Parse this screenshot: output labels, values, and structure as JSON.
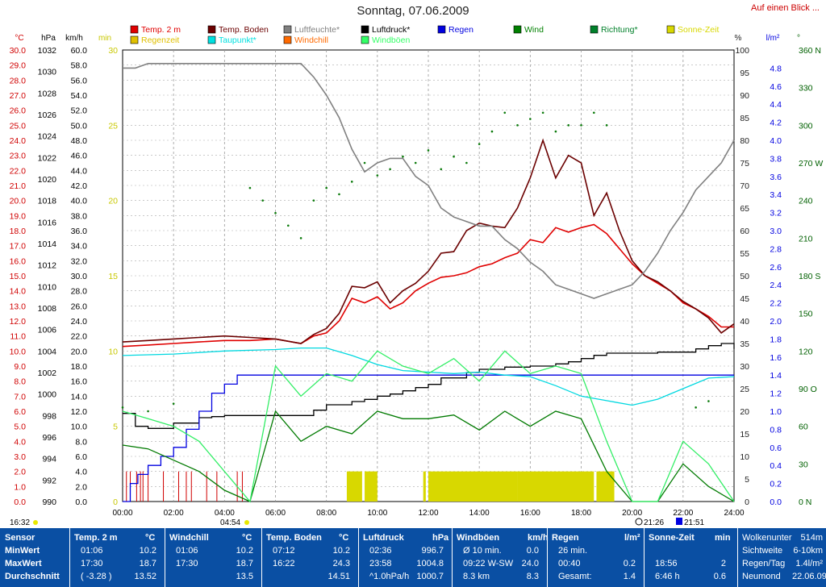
{
  "page": {
    "title": "Sonntag, 07.06.2009",
    "link": "Auf einen Blick ..."
  },
  "chart_data": {
    "type": "line",
    "x_range_hours": [
      0,
      24
    ],
    "x_ticks": [
      "00:00",
      "02:00",
      "04:00",
      "06:00",
      "08:00",
      "10:00",
      "12:00",
      "14:00",
      "16:00",
      "18:00",
      "20:00",
      "22:00",
      "24:00"
    ],
    "grid": true,
    "legend_position": "top",
    "legend": [
      {
        "name": "Temp. 2 m",
        "color": "#e00000"
      },
      {
        "name": "Temp. Boden",
        "color": "#6b0000"
      },
      {
        "name": "Luftfeuchte*",
        "color": "#808080"
      },
      {
        "name": "Luftdruck*",
        "color": "#000000"
      },
      {
        "name": "Regen",
        "color": "#0000e0"
      },
      {
        "name": "Wind",
        "color": "#008000"
      },
      {
        "name": "Richtung*",
        "color": "#00802a"
      },
      {
        "name": "Sonne-Zeit",
        "color": "#d8d800"
      },
      {
        "name": "Regenzeit",
        "color": "#e0c000"
      },
      {
        "name": "Taupunkt*",
        "color": "#00e0e0"
      },
      {
        "name": "Windchill",
        "color": "#ff6a00"
      },
      {
        "name": "Windböen",
        "color": "#33ff66"
      }
    ],
    "axes": {
      "temp": {
        "unit": "°C",
        "range": [
          0,
          30
        ],
        "ticks": [
          "30.0",
          "29.0",
          "28.0",
          "27.0",
          "26.0",
          "25.0",
          "24.0",
          "23.0",
          "22.0",
          "21.0",
          "20.0",
          "19.0",
          "18.0",
          "17.0",
          "16.0",
          "15.0",
          "14.0",
          "13.0",
          "12.0",
          "11.0",
          "10.0",
          "9.0",
          "8.0",
          "7.0",
          "6.0",
          "5.0",
          "4.0",
          "3.0",
          "2.0",
          "1.0",
          "0.0"
        ]
      },
      "pressure": {
        "unit": "hPa",
        "range": [
          990,
          1032
        ],
        "ticks": [
          "1032",
          "1030",
          "1028",
          "1026",
          "1024",
          "1022",
          "1020",
          "1018",
          "1016",
          "1014",
          "1012",
          "1010",
          "1008",
          "1006",
          "1004",
          "1002",
          "1000",
          "998",
          "996",
          "994",
          "992",
          "990"
        ]
      },
      "wind": {
        "unit": "km/h",
        "range": [
          0,
          60
        ],
        "ticks": [
          "60.0",
          "58.0",
          "56.0",
          "54.0",
          "52.0",
          "50.0",
          "48.0",
          "46.0",
          "44.0",
          "42.0",
          "40.0",
          "38.0",
          "36.0",
          "34.0",
          "32.0",
          "30.0",
          "28.0",
          "26.0",
          "24.0",
          "22.0",
          "20.0",
          "18.0",
          "16.0",
          "14.0",
          "12.0",
          "10.0",
          "8.0",
          "6.0",
          "4.0",
          "2.0",
          "0.0"
        ]
      },
      "minutes": {
        "unit": "min",
        "range": [
          0,
          30
        ],
        "ticks": [
          "30",
          "25",
          "20",
          "15",
          "10",
          "5",
          "0"
        ]
      },
      "humidity": {
        "unit": "%",
        "range": [
          0,
          100
        ],
        "ticks": [
          "100",
          "95",
          "90",
          "85",
          "80",
          "75",
          "70",
          "65",
          "60",
          "55",
          "50",
          "45",
          "40",
          "35",
          "30",
          "25",
          "20",
          "15",
          "10",
          "5",
          "0"
        ]
      },
      "rain": {
        "unit": "l/m²",
        "range": [
          0,
          5
        ],
        "ticks": [
          "4.8",
          "4.6",
          "4.4",
          "4.2",
          "4.0",
          "3.8",
          "3.6",
          "3.4",
          "3.2",
          "3.0",
          "2.8",
          "2.6",
          "2.4",
          "2.2",
          "2.0",
          "1.8",
          "1.6",
          "1.4",
          "1.2",
          "1.0",
          "0.8",
          "0.6",
          "0.4",
          "0.2",
          "0.0"
        ]
      },
      "direction": {
        "unit": "°",
        "range": [
          0,
          360
        ],
        "ticks": [
          "360 N",
          "330",
          "300",
          "270 W",
          "240",
          "210",
          "180 S",
          "150",
          "120",
          "90 O",
          "60",
          "30",
          "0 N"
        ]
      }
    },
    "series": [
      {
        "name": "Temp. 2 m",
        "axis": "temp",
        "x": [
          0,
          1,
          2,
          3,
          4,
          5,
          6,
          7,
          7.5,
          8,
          8.5,
          9,
          9.5,
          10,
          10.5,
          11,
          11.5,
          12,
          12.5,
          13,
          13.5,
          14,
          14.5,
          15,
          15.5,
          16,
          16.5,
          17,
          17.5,
          18,
          18.5,
          19,
          19.5,
          20,
          20.5,
          21,
          21.5,
          22,
          22.5,
          23,
          23.5,
          24
        ],
        "y": [
          10.3,
          10.4,
          10.5,
          10.6,
          10.7,
          10.7,
          10.8,
          10.5,
          11,
          11.2,
          12,
          13.5,
          13.2,
          13.6,
          12.8,
          13.2,
          14,
          14.5,
          14.9,
          15,
          15.2,
          15.6,
          15.8,
          16.2,
          16.5,
          17.4,
          17.2,
          18.2,
          17.9,
          18.2,
          18.4,
          17.8,
          16.8,
          15.8,
          15,
          14.5,
          14,
          13.2,
          12.8,
          12.3,
          11.6,
          11.6
        ]
      },
      {
        "name": "Temp. Boden",
        "axis": "temp",
        "x": [
          0,
          1,
          2,
          3,
          4,
          5,
          6,
          7,
          7.5,
          8,
          8.5,
          9,
          9.5,
          10,
          10.5,
          11,
          11.5,
          12,
          12.5,
          13,
          13.5,
          14,
          14.5,
          15,
          15.5,
          16,
          16.5,
          17,
          17.5,
          18,
          18.5,
          19,
          19.5,
          20,
          20.5,
          21,
          21.5,
          22,
          22.5,
          23,
          23.5,
          24
        ],
        "y": [
          10.6,
          10.7,
          10.8,
          10.9,
          11,
          10.9,
          10.8,
          10.5,
          11.1,
          11.5,
          12.5,
          14.3,
          14.2,
          14.6,
          13.2,
          14,
          14.5,
          15.3,
          16.5,
          16.6,
          18,
          18.5,
          18.3,
          18.2,
          19.5,
          21.5,
          24,
          21.5,
          23,
          22.5,
          19,
          20.5,
          18,
          16,
          15,
          14.6,
          14,
          13.3,
          12.8,
          12.2,
          11.2,
          11.8
        ]
      },
      {
        "name": "Luftfeuchte*",
        "axis": "humidity",
        "x": [
          0,
          0.5,
          1,
          2,
          3,
          4,
          5,
          6,
          7,
          7.5,
          8,
          8.5,
          9,
          9.5,
          10,
          10.5,
          11,
          11.5,
          12,
          12.5,
          13,
          13.5,
          14,
          14.5,
          15,
          15.5,
          16,
          16.5,
          17,
          17.5,
          18,
          18.5,
          19,
          19.5,
          20,
          20.5,
          21,
          21.5,
          22,
          22.5,
          23,
          23.5,
          24
        ],
        "y": [
          96,
          96,
          97,
          97,
          97,
          97,
          97,
          97,
          97,
          94,
          90,
          85,
          78,
          73,
          75,
          76,
          76,
          72,
          70,
          65,
          63,
          62,
          61,
          61,
          58,
          56,
          53,
          51,
          48,
          47,
          46,
          45,
          46,
          47,
          48,
          51,
          55,
          60,
          64,
          69,
          72,
          75,
          80
        ]
      },
      {
        "name": "Luftdruck*",
        "axis": "pressure",
        "x": [
          0,
          0.5,
          1,
          1.5,
          2,
          2.5,
          3,
          3.5,
          4,
          5,
          6,
          7,
          7.5,
          8,
          8.5,
          9,
          9.5,
          10,
          10.5,
          11,
          11.5,
          12,
          12.5,
          13,
          13.5,
          14,
          14.5,
          15,
          16,
          17,
          17.5,
          18,
          18.5,
          19,
          20,
          21,
          22,
          22.5,
          23,
          23.5,
          24
        ],
        "y": [
          998.2,
          997,
          996.8,
          996.8,
          997.3,
          997.3,
          997.8,
          997.9,
          998,
          998,
          998,
          998,
          998.5,
          999,
          999,
          999.3,
          999.5,
          999.8,
          1000,
          1000.3,
          1000.6,
          1000.9,
          1001.5,
          1001.5,
          1002,
          1002.3,
          1002.3,
          1002.5,
          1002.6,
          1002.8,
          1003,
          1003.3,
          1003.6,
          1003.8,
          1003.8,
          1003.9,
          1003.9,
          1004.2,
          1004.5,
          1004.7,
          1004.2
        ]
      },
      {
        "name": "Regen",
        "axis": "rain",
        "x": [
          0,
          0.3,
          0.6,
          1,
          1.5,
          2,
          2.5,
          3,
          3.5,
          4,
          4.5,
          5,
          24
        ],
        "y": [
          0,
          0.2,
          0.3,
          0.4,
          0.5,
          0.6,
          0.8,
          1,
          1.2,
          1.3,
          1.4,
          1.4,
          1.4
        ]
      },
      {
        "name": "Taupunkt*",
        "axis": "temp",
        "x": [
          0,
          2,
          4,
          6,
          7,
          8,
          9,
          10,
          11,
          12,
          13,
          14,
          15,
          16,
          17,
          18,
          19,
          20,
          21,
          22,
          23,
          24
        ],
        "y": [
          9.7,
          9.8,
          10,
          10.1,
          10.2,
          10.2,
          9.7,
          9.1,
          8.7,
          8.6,
          8.5,
          8.6,
          8.4,
          8.3,
          7.7,
          7,
          6.7,
          6.4,
          6.8,
          7.5,
          8.2,
          8.3
        ]
      },
      {
        "name": "Wind",
        "axis": "wind",
        "x": [
          0,
          1,
          2,
          3,
          4,
          5,
          6,
          7,
          8,
          9,
          10,
          11,
          12,
          13,
          14,
          15,
          16,
          17,
          18,
          19,
          20,
          21,
          22,
          23,
          24
        ],
        "y": [
          7.5,
          7,
          5.5,
          4,
          1.5,
          0,
          12,
          8,
          10,
          9,
          12,
          11,
          11,
          11.5,
          9.5,
          12,
          10,
          12,
          11,
          4,
          0,
          0,
          5,
          2,
          0
        ]
      },
      {
        "name": "Windböen",
        "axis": "wind",
        "x": [
          0,
          1,
          2,
          3,
          4,
          5,
          6,
          7,
          8,
          9,
          10,
          11,
          12,
          13,
          14,
          15,
          16,
          17,
          18,
          19,
          20,
          21,
          22,
          23,
          24
        ],
        "y": [
          12,
          11,
          10,
          8,
          4,
          0,
          18,
          14,
          17,
          16,
          20,
          18,
          17,
          19,
          16,
          20,
          17,
          18,
          17,
          8,
          0,
          0,
          8,
          5,
          0
        ]
      },
      {
        "name": "Richtung*",
        "axis": "direction",
        "x": [
          0,
          1,
          2,
          5,
          5.5,
          6,
          6.5,
          7,
          7.5,
          8,
          8.5,
          9,
          9.5,
          10,
          10.5,
          11,
          11.5,
          12,
          12.5,
          13,
          13.5,
          14,
          14.5,
          15,
          15.5,
          16,
          16.5,
          17,
          17.5,
          18,
          18.5,
          19,
          22.5,
          23
        ],
        "y": [
          75,
          72,
          78,
          250,
          240,
          230,
          220,
          210,
          240,
          250,
          245,
          255,
          270,
          260,
          265,
          275,
          270,
          280,
          265,
          275,
          270,
          285,
          295,
          310,
          300,
          305,
          310,
          295,
          300,
          300,
          310,
          300,
          75,
          80
        ]
      }
    ],
    "sunshine_bars": [
      [
        8.8,
        9.4
      ],
      [
        9.5,
        10
      ],
      [
        11.8,
        11.9
      ],
      [
        12,
        15.5
      ],
      [
        15.5,
        18.5
      ],
      [
        18.6,
        19.3
      ]
    ],
    "rain_spikes": [
      0.15,
      0.3,
      0.55,
      0.7,
      0.8,
      1,
      1.6,
      2.2,
      2.5,
      2.7,
      3.3,
      3.7,
      4.5,
      4.7
    ]
  },
  "footer_axis": {
    "sunrise": "04:54",
    "sunset": "21:26",
    "moon": "21:51",
    "left_time": "16:32"
  },
  "table": {
    "row_labels": [
      "Sensor",
      "MinWert",
      "MaxWert",
      "Durchschnitt"
    ],
    "cols": [
      {
        "h": "Temp. 2 m",
        "u": "°C",
        "rows": [
          [
            "01:06",
            "10.2"
          ],
          [
            "17:30",
            "18.7"
          ],
          [
            "( -3.28 )",
            "13.52"
          ]
        ]
      },
      {
        "h": "Windchill",
        "u": "°C",
        "rows": [
          [
            "01:06",
            "10.2"
          ],
          [
            "17:30",
            "18.7"
          ],
          [
            "",
            "13.5"
          ]
        ]
      },
      {
        "h": "Temp. Boden",
        "u": "°C",
        "rows": [
          [
            "07:12",
            "10.2"
          ],
          [
            "16:22",
            "24.3"
          ],
          [
            "",
            "14.51"
          ]
        ]
      },
      {
        "h": "Luftdruck",
        "u": "hPa",
        "rows": [
          [
            "02:36",
            "996.7"
          ],
          [
            "23:58",
            "1004.8"
          ],
          [
            "^1.0hPa/h",
            "1000.7"
          ]
        ]
      },
      {
        "h": "Windböen",
        "u": "km/h",
        "rows": [
          [
            "Ø 10 min.",
            "0.0"
          ],
          [
            "09:22  W-SW",
            "24.0"
          ],
          [
            "8.3 km",
            "8.3"
          ]
        ]
      },
      {
        "h": "Regen",
        "u": "l/m²",
        "rows": [
          [
            "26 min.",
            ""
          ],
          [
            "00:40",
            "0.2"
          ],
          [
            "Gesamt:",
            "1.4"
          ]
        ]
      },
      {
        "h": "Sonne-Zeit",
        "u": "min",
        "rows": [
          [
            "",
            ""
          ],
          [
            "18:56",
            "2"
          ],
          [
            "6:46 h",
            "0.6"
          ]
        ]
      }
    ],
    "extra": [
      [
        "Wolkenuntergrenze",
        "514m"
      ],
      [
        "Sichtweite",
        "6-10km"
      ],
      [
        "Regen/Tag",
        "1.4l/m²"
      ],
      [
        "Neumond",
        "22.06.09"
      ]
    ]
  }
}
